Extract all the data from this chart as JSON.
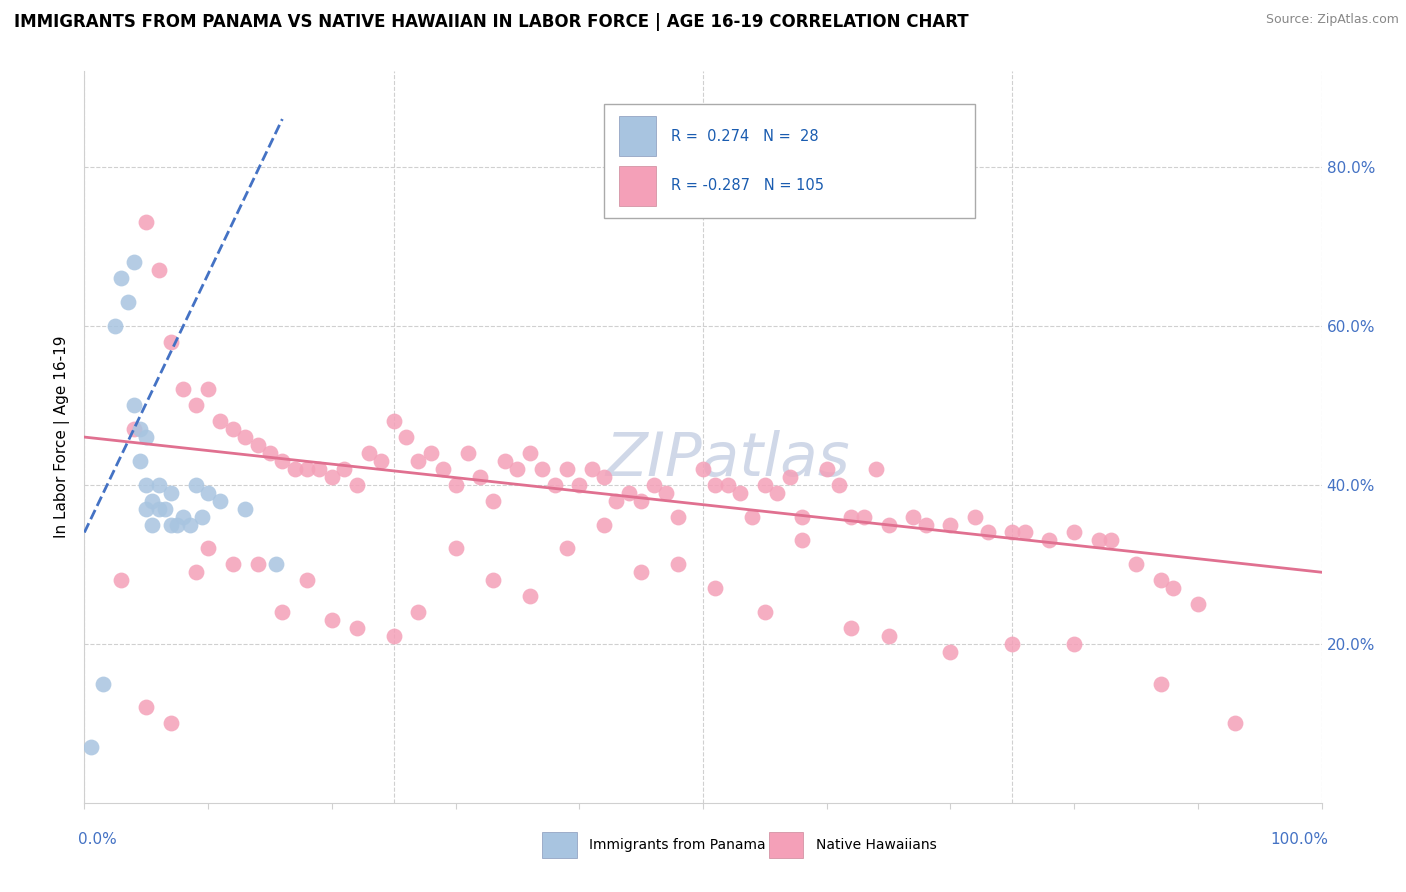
{
  "title": "IMMIGRANTS FROM PANAMA VS NATIVE HAWAIIAN IN LABOR FORCE | AGE 16-19 CORRELATION CHART",
  "source": "Source: ZipAtlas.com",
  "ylabel": "In Labor Force | Age 16-19",
  "legend_label1": "Immigrants from Panama",
  "legend_label2": "Native Hawaiians",
  "R1": 0.274,
  "N1": 28,
  "R2": -0.287,
  "N2": 105,
  "color1": "#a8c4e0",
  "color2": "#f4a0b8",
  "trend_color1": "#4472c4",
  "trend_color2": "#e07090",
  "right_ytick_labels": [
    "20.0%",
    "40.0%",
    "60.0%",
    "80.0%"
  ],
  "right_ytick_values": [
    0.2,
    0.4,
    0.6,
    0.8
  ],
  "xlim": [
    0.0,
    1.0
  ],
  "ylim": [
    0.0,
    0.92
  ],
  "panama_x": [
    0.015,
    0.025,
    0.03,
    0.035,
    0.04,
    0.04,
    0.045,
    0.045,
    0.05,
    0.05,
    0.05,
    0.055,
    0.055,
    0.06,
    0.06,
    0.065,
    0.07,
    0.07,
    0.075,
    0.08,
    0.085,
    0.09,
    0.095,
    0.1,
    0.11,
    0.13,
    0.155,
    0.005
  ],
  "panama_y": [
    0.15,
    0.6,
    0.66,
    0.63,
    0.68,
    0.5,
    0.47,
    0.43,
    0.46,
    0.4,
    0.37,
    0.38,
    0.35,
    0.4,
    0.37,
    0.37,
    0.39,
    0.35,
    0.35,
    0.36,
    0.35,
    0.4,
    0.36,
    0.39,
    0.38,
    0.37,
    0.3,
    0.07
  ],
  "hawaiian_x": [
    0.04,
    0.05,
    0.06,
    0.07,
    0.08,
    0.09,
    0.1,
    0.11,
    0.12,
    0.13,
    0.14,
    0.15,
    0.16,
    0.17,
    0.18,
    0.19,
    0.2,
    0.21,
    0.22,
    0.23,
    0.24,
    0.25,
    0.26,
    0.27,
    0.28,
    0.29,
    0.3,
    0.31,
    0.32,
    0.33,
    0.34,
    0.35,
    0.36,
    0.37,
    0.38,
    0.39,
    0.4,
    0.41,
    0.42,
    0.43,
    0.44,
    0.45,
    0.46,
    0.47,
    0.48,
    0.5,
    0.51,
    0.52,
    0.53,
    0.54,
    0.55,
    0.56,
    0.57,
    0.58,
    0.6,
    0.61,
    0.62,
    0.63,
    0.64,
    0.65,
    0.67,
    0.68,
    0.7,
    0.72,
    0.73,
    0.75,
    0.76,
    0.78,
    0.8,
    0.82,
    0.83,
    0.85,
    0.87,
    0.88,
    0.9,
    0.03,
    0.05,
    0.07,
    0.09,
    0.1,
    0.12,
    0.14,
    0.16,
    0.18,
    0.2,
    0.22,
    0.25,
    0.27,
    0.3,
    0.33,
    0.36,
    0.39,
    0.42,
    0.45,
    0.48,
    0.51,
    0.55,
    0.58,
    0.62,
    0.65,
    0.7,
    0.75,
    0.8,
    0.87,
    0.93
  ],
  "hawaiian_y": [
    0.47,
    0.73,
    0.67,
    0.58,
    0.52,
    0.5,
    0.52,
    0.48,
    0.47,
    0.46,
    0.45,
    0.44,
    0.43,
    0.42,
    0.42,
    0.42,
    0.41,
    0.42,
    0.4,
    0.44,
    0.43,
    0.48,
    0.46,
    0.43,
    0.44,
    0.42,
    0.4,
    0.44,
    0.41,
    0.38,
    0.43,
    0.42,
    0.44,
    0.42,
    0.4,
    0.42,
    0.4,
    0.42,
    0.41,
    0.38,
    0.39,
    0.38,
    0.4,
    0.39,
    0.36,
    0.42,
    0.4,
    0.4,
    0.39,
    0.36,
    0.4,
    0.39,
    0.41,
    0.36,
    0.42,
    0.4,
    0.36,
    0.36,
    0.42,
    0.35,
    0.36,
    0.35,
    0.35,
    0.36,
    0.34,
    0.34,
    0.34,
    0.33,
    0.34,
    0.33,
    0.33,
    0.3,
    0.28,
    0.27,
    0.25,
    0.28,
    0.12,
    0.1,
    0.29,
    0.32,
    0.3,
    0.3,
    0.24,
    0.28,
    0.23,
    0.22,
    0.21,
    0.24,
    0.32,
    0.28,
    0.26,
    0.32,
    0.35,
    0.29,
    0.3,
    0.27,
    0.24,
    0.33,
    0.22,
    0.21,
    0.19,
    0.2,
    0.2,
    0.15,
    0.1
  ],
  "panama_trend_x": [
    0.0,
    0.16
  ],
  "panama_trend_y": [
    0.34,
    0.86
  ],
  "hawaiian_trend_x": [
    0.0,
    1.0
  ],
  "hawaiian_trend_y": [
    0.46,
    0.29
  ],
  "watermark": "ZIPatlas",
  "watermark_color": "#d0d8e8",
  "background_color": "#ffffff",
  "grid_color": "#d0d0d0",
  "spine_color": "#d0d0d0",
  "title_fontsize": 12,
  "label_fontsize": 11,
  "tick_fontsize": 11,
  "source_fontsize": 9
}
